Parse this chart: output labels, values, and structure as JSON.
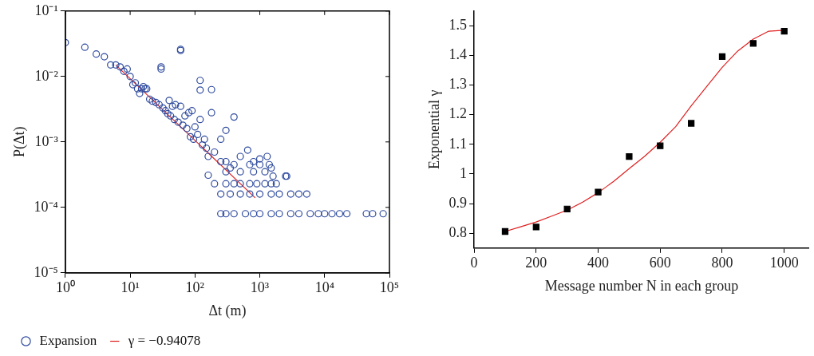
{
  "chart_data": [
    {
      "type": "scatter",
      "xlabel": "Δt (m)",
      "ylabel": "P(Δt)",
      "log": "xy",
      "grid": false,
      "legend": "bottom left",
      "xlim": [
        1,
        100000
      ],
      "ylim": [
        1e-05,
        0.1
      ],
      "xticks": [
        {
          "value": 1,
          "label": "10⁰"
        },
        {
          "value": 10,
          "label": "10¹"
        },
        {
          "value": 100,
          "label": "10²"
        },
        {
          "value": 1000,
          "label": "10³"
        },
        {
          "value": 10000,
          "label": "10⁴"
        },
        {
          "value": 100000,
          "label": "10⁵"
        }
      ],
      "yticks": [
        {
          "value": 1e-05,
          "label": "10⁻⁵"
        },
        {
          "value": 0.0001,
          "label": "10⁻⁴"
        },
        {
          "value": 0.001,
          "label": "10⁻³"
        },
        {
          "value": 0.01,
          "label": "10⁻²"
        },
        {
          "value": 0.1,
          "label": "10⁻¹"
        }
      ],
      "series": [
        {
          "name": "Expansion",
          "marker": "circle",
          "color": "#2e4a9e",
          "x": [
            1,
            2,
            3,
            4,
            5,
            6,
            7,
            8,
            9,
            10,
            11,
            12,
            13,
            14,
            15,
            16,
            17,
            18,
            20,
            22,
            25,
            28,
            30,
            30,
            32,
            35,
            38,
            40,
            42,
            45,
            48,
            50,
            55,
            60,
            60,
            60,
            65,
            70,
            75,
            80,
            85,
            90,
            95,
            100,
            110,
            120,
            120,
            120,
            130,
            140,
            150,
            160,
            180,
            180,
            200,
            250,
            300,
            400,
            250,
            300,
            350,
            500,
            650,
            800,
            1000,
            1300,
            1500,
            1600,
            160,
            2500,
            2600,
            200,
            300,
            400,
            500,
            700,
            900,
            1200,
            1500,
            1800,
            250,
            350,
            500,
            700,
            1000,
            1500,
            2000,
            3000,
            4000,
            5300,
            250,
            300,
            400,
            600,
            800,
            1000,
            1500,
            2000,
            3000,
            4000,
            6000,
            8000,
            10000,
            13000,
            17000,
            22000,
            44000,
            55000,
            80000,
            300,
            500,
            800,
            1200,
            400,
            700,
            1000,
            1400
          ],
          "values": [
            0.033,
            0.028,
            0.022,
            0.02,
            0.015,
            0.015,
            0.014,
            0.012,
            0.013,
            0.01,
            0.0075,
            0.008,
            0.0065,
            0.0055,
            0.0065,
            0.007,
            0.0065,
            0.0065,
            0.0045,
            0.0042,
            0.004,
            0.0037,
            0.014,
            0.013,
            0.0033,
            0.003,
            0.0027,
            0.0043,
            0.0025,
            0.0035,
            0.0022,
            0.0037,
            0.002,
            0.026,
            0.025,
            0.0035,
            0.0018,
            0.0025,
            0.0016,
            0.0028,
            0.0012,
            0.003,
            0.0011,
            0.0017,
            0.0013,
            0.0087,
            0.0062,
            0.0022,
            0.0009,
            0.0011,
            0.0008,
            0.0006,
            0.0063,
            0.0028,
            0.0007,
            0.0011,
            0.0015,
            0.0024,
            0.0005,
            0.0005,
            0.0004,
            0.0006,
            0.00075,
            0.0005,
            0.00055,
            0.0006,
            0.0004,
            0.0003,
            0.00031,
            0.0003,
            0.0003,
            0.00023,
            0.00023,
            0.00023,
            0.00023,
            0.00023,
            0.00023,
            0.00023,
            0.00023,
            0.00023,
            0.00016,
            0.00016,
            0.00016,
            0.00016,
            0.00016,
            0.00016,
            0.00016,
            0.00016,
            0.00016,
            0.00016,
            8e-05,
            8e-05,
            8e-05,
            8e-05,
            8e-05,
            8e-05,
            8e-05,
            8e-05,
            8e-05,
            8e-05,
            8e-05,
            8e-05,
            8e-05,
            8e-05,
            8e-05,
            8e-05,
            8e-05,
            8e-05,
            8e-05,
            0.00035,
            0.00035,
            0.00035,
            0.00035,
            0.00045,
            0.00045,
            0.00045,
            0.00045
          ]
        },
        {
          "name": "γ = −0.94078",
          "type": "line",
          "marker": "none",
          "color": "#e02020",
          "x": [
            6,
            850
          ],
          "values": [
            0.015,
            0.00014
          ]
        }
      ]
    },
    {
      "type": "scatter",
      "xlabel": "Message number N in each group",
      "ylabel": "Exponential γ",
      "grid": false,
      "legend": false,
      "xlim": [
        0,
        1080
      ],
      "ylim": [
        0.75,
        1.55
      ],
      "xticks": [
        0,
        200,
        400,
        600,
        800,
        1000
      ],
      "yticks": [
        0.8,
        0.9,
        1,
        1.1,
        1.2,
        1.3,
        1.4,
        1.5
      ],
      "series": [
        {
          "marker": "square",
          "color": "#000000",
          "x": [
            100,
            200,
            300,
            400,
            500,
            600,
            700,
            800,
            900,
            1000
          ],
          "values": [
            0.806,
            0.821,
            0.882,
            0.939,
            1.059,
            1.095,
            1.171,
            1.396,
            1.441,
            1.482
          ]
        },
        {
          "type": "line",
          "marker": "none",
          "color": "#e02020",
          "x": [
            100,
            150,
            200,
            250,
            300,
            350,
            400,
            450,
            500,
            550,
            600,
            650,
            700,
            750,
            800,
            850,
            900,
            950,
            1000
          ],
          "values": [
            0.806,
            0.822,
            0.838,
            0.858,
            0.878,
            0.905,
            0.937,
            0.975,
            1.018,
            1.06,
            1.107,
            1.16,
            1.23,
            1.295,
            1.36,
            1.415,
            1.455,
            1.482,
            1.485
          ]
        }
      ]
    }
  ]
}
